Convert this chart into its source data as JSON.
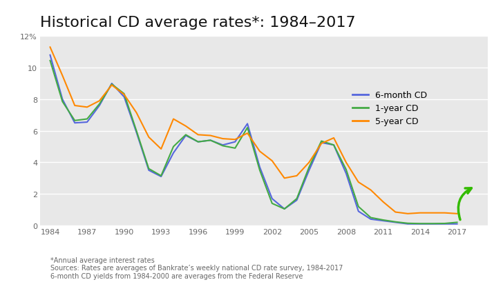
{
  "title": "Historical CD average rates*: 1984–2017",
  "background_color": "#e8e8e8",
  "figure_background": "#ffffff",
  "footnotes": [
    "*Annual average interest rates",
    "Sources: Rates are averages of Bankrate’s weekly national CD rate survey, 1984-2017",
    "6-month CD yields from 1984-2000 are averages from the Federal Reserve"
  ],
  "years_6mo": [
    1984,
    1985,
    1986,
    1987,
    1988,
    1989,
    1990,
    1991,
    1992,
    1993,
    1994,
    1995,
    1996,
    1997,
    1998,
    1999,
    2000,
    2001,
    2002,
    2003,
    2004,
    2005,
    2006,
    2007,
    2008,
    2009,
    2010,
    2011,
    2012,
    2013,
    2014,
    2015,
    2016,
    2017
  ],
  "rates_6mo": [
    10.8,
    8.0,
    6.5,
    6.55,
    7.6,
    9.0,
    8.15,
    5.9,
    3.5,
    3.1,
    4.6,
    5.7,
    5.3,
    5.4,
    5.1,
    5.3,
    6.45,
    3.7,
    1.7,
    1.05,
    1.6,
    3.5,
    5.25,
    5.1,
    3.3,
    0.9,
    0.4,
    0.3,
    0.2,
    0.1,
    0.1,
    0.1,
    0.1,
    0.1
  ],
  "years_1yr": [
    1984,
    1985,
    1986,
    1987,
    1988,
    1989,
    1990,
    1991,
    1992,
    1993,
    1994,
    1995,
    1996,
    1997,
    1998,
    1999,
    2000,
    2001,
    2002,
    2003,
    2004,
    2005,
    2006,
    2007,
    2008,
    2009,
    2010,
    2011,
    2012,
    2013,
    2014,
    2015,
    2016,
    2017
  ],
  "rates_1yr": [
    10.45,
    7.85,
    6.65,
    6.75,
    7.7,
    8.95,
    8.35,
    6.0,
    3.6,
    3.15,
    5.0,
    5.75,
    5.3,
    5.4,
    5.05,
    4.9,
    6.2,
    3.5,
    1.4,
    1.05,
    1.7,
    3.7,
    5.35,
    5.1,
    3.55,
    1.2,
    0.5,
    0.35,
    0.23,
    0.14,
    0.12,
    0.12,
    0.13,
    0.2
  ],
  "years_5yr": [
    1984,
    1985,
    1986,
    1987,
    1988,
    1989,
    1990,
    1991,
    1992,
    1993,
    1994,
    1995,
    1996,
    1997,
    1998,
    1999,
    2000,
    2001,
    2002,
    2003,
    2004,
    2005,
    2006,
    2007,
    2008,
    2009,
    2010,
    2011,
    2012,
    2013,
    2014,
    2015,
    2016,
    2017
  ],
  "rates_5yr": [
    11.3,
    9.5,
    7.6,
    7.5,
    7.9,
    8.9,
    8.3,
    7.15,
    5.6,
    4.85,
    6.75,
    6.3,
    5.75,
    5.7,
    5.5,
    5.45,
    5.85,
    4.7,
    4.1,
    3.0,
    3.15,
    4.0,
    5.2,
    5.55,
    4.0,
    2.75,
    2.25,
    1.5,
    0.85,
    0.75,
    0.8,
    0.8,
    0.8,
    0.75
  ],
  "color_6mo": "#5566dd",
  "color_1yr": "#44aa44",
  "color_5yr": "#ff8800",
  "ylim": [
    0,
    12
  ],
  "ytick_vals": [
    0,
    2,
    4,
    6,
    8,
    10,
    12
  ],
  "ytick_labels": [
    "0",
    "2",
    "4",
    "6",
    "8",
    "10",
    "12%"
  ],
  "xticks": [
    1984,
    1987,
    1990,
    1993,
    1996,
    1999,
    2002,
    2005,
    2008,
    2011,
    2014,
    2017
  ],
  "legend_labels": [
    "6-month CD",
    "1-year CD",
    "5-year CD"
  ],
  "title_fontsize": 16,
  "axis_fontsize": 8,
  "footnote_fontsize": 7
}
